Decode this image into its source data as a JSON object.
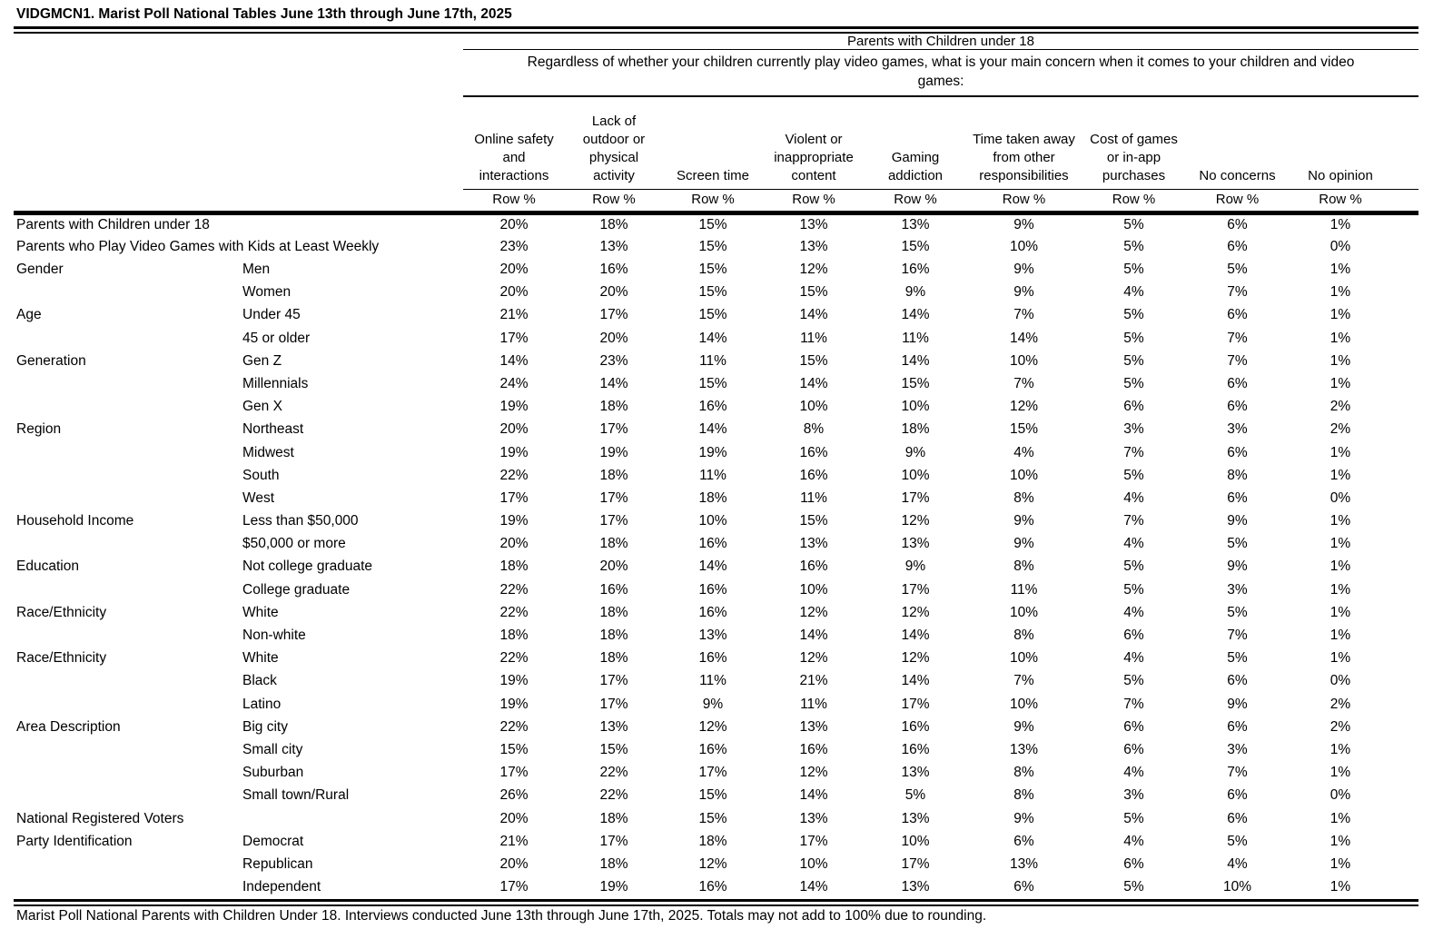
{
  "title": "VIDGMCN1. Marist Poll National Tables June 13th through June 17th, 2025",
  "table": {
    "group_header": "Parents with Children under 18",
    "question": "Regardless of whether your children currently play video games, what is your main concern when it comes to your children and video\ngames:",
    "measure_label": "Row %",
    "columns": [
      "Online safety\nand\ninteractions",
      "Lack of\noutdoor or\nphysical\nactivity",
      "Screen time",
      "Violent or\ninappropriate\ncontent",
      "Gaming\naddiction",
      "Time taken away\nfrom other\nresponsibilities",
      "Cost of games\nor in-app\npurchases",
      "No concerns",
      "No opinion"
    ],
    "rows": [
      {
        "category": "Parents with Children under 18",
        "subcategory": "",
        "values": [
          "20%",
          "18%",
          "15%",
          "13%",
          "13%",
          "9%",
          "5%",
          "6%",
          "1%"
        ]
      },
      {
        "category": "Parents who Play Video Games with Kids at Least Weekly",
        "subcategory": "",
        "values": [
          "23%",
          "13%",
          "15%",
          "13%",
          "15%",
          "10%",
          "5%",
          "6%",
          "0%"
        ]
      },
      {
        "category": "Gender",
        "subcategory": "Men",
        "values": [
          "20%",
          "16%",
          "15%",
          "12%",
          "16%",
          "9%",
          "5%",
          "5%",
          "1%"
        ]
      },
      {
        "category": "",
        "subcategory": "Women",
        "values": [
          "20%",
          "20%",
          "15%",
          "15%",
          "9%",
          "9%",
          "4%",
          "7%",
          "1%"
        ]
      },
      {
        "category": "Age",
        "subcategory": "Under 45",
        "values": [
          "21%",
          "17%",
          "15%",
          "14%",
          "14%",
          "7%",
          "5%",
          "6%",
          "1%"
        ]
      },
      {
        "category": "",
        "subcategory": "45 or older",
        "values": [
          "17%",
          "20%",
          "14%",
          "11%",
          "11%",
          "14%",
          "5%",
          "7%",
          "1%"
        ]
      },
      {
        "category": "Generation",
        "subcategory": "Gen Z",
        "values": [
          "14%",
          "23%",
          "11%",
          "15%",
          "14%",
          "10%",
          "5%",
          "7%",
          "1%"
        ]
      },
      {
        "category": "",
        "subcategory": "Millennials",
        "values": [
          "24%",
          "14%",
          "15%",
          "14%",
          "15%",
          "7%",
          "5%",
          "6%",
          "1%"
        ]
      },
      {
        "category": "",
        "subcategory": "Gen X",
        "values": [
          "19%",
          "18%",
          "16%",
          "10%",
          "10%",
          "12%",
          "6%",
          "6%",
          "2%"
        ]
      },
      {
        "category": "Region",
        "subcategory": "Northeast",
        "values": [
          "20%",
          "17%",
          "14%",
          "8%",
          "18%",
          "15%",
          "3%",
          "3%",
          "2%"
        ]
      },
      {
        "category": "",
        "subcategory": "Midwest",
        "values": [
          "19%",
          "19%",
          "19%",
          "16%",
          "9%",
          "4%",
          "7%",
          "6%",
          "1%"
        ]
      },
      {
        "category": "",
        "subcategory": "South",
        "values": [
          "22%",
          "18%",
          "11%",
          "16%",
          "10%",
          "10%",
          "5%",
          "8%",
          "1%"
        ]
      },
      {
        "category": "",
        "subcategory": "West",
        "values": [
          "17%",
          "17%",
          "18%",
          "11%",
          "17%",
          "8%",
          "4%",
          "6%",
          "0%"
        ]
      },
      {
        "category": "Household Income",
        "subcategory": "Less than $50,000",
        "values": [
          "19%",
          "17%",
          "10%",
          "15%",
          "12%",
          "9%",
          "7%",
          "9%",
          "1%"
        ]
      },
      {
        "category": "",
        "subcategory": "$50,000 or more",
        "values": [
          "20%",
          "18%",
          "16%",
          "13%",
          "13%",
          "9%",
          "4%",
          "5%",
          "1%"
        ]
      },
      {
        "category": "Education",
        "subcategory": "Not college graduate",
        "values": [
          "18%",
          "20%",
          "14%",
          "16%",
          "9%",
          "8%",
          "5%",
          "9%",
          "1%"
        ]
      },
      {
        "category": "",
        "subcategory": "College graduate",
        "values": [
          "22%",
          "16%",
          "16%",
          "10%",
          "17%",
          "11%",
          "5%",
          "3%",
          "1%"
        ]
      },
      {
        "category": "Race/Ethnicity",
        "subcategory": "White",
        "values": [
          "22%",
          "18%",
          "16%",
          "12%",
          "12%",
          "10%",
          "4%",
          "5%",
          "1%"
        ]
      },
      {
        "category": "",
        "subcategory": "Non-white",
        "values": [
          "18%",
          "18%",
          "13%",
          "14%",
          "14%",
          "8%",
          "6%",
          "7%",
          "1%"
        ]
      },
      {
        "category": "Race/Ethnicity",
        "subcategory": "White",
        "values": [
          "22%",
          "18%",
          "16%",
          "12%",
          "12%",
          "10%",
          "4%",
          "5%",
          "1%"
        ]
      },
      {
        "category": "",
        "subcategory": "Black",
        "values": [
          "19%",
          "17%",
          "11%",
          "21%",
          "14%",
          "7%",
          "5%",
          "6%",
          "0%"
        ]
      },
      {
        "category": "",
        "subcategory": "Latino",
        "values": [
          "19%",
          "17%",
          "9%",
          "11%",
          "17%",
          "10%",
          "7%",
          "9%",
          "2%"
        ]
      },
      {
        "category": "Area Description",
        "subcategory": "Big city",
        "values": [
          "22%",
          "13%",
          "12%",
          "13%",
          "16%",
          "9%",
          "6%",
          "6%",
          "2%"
        ]
      },
      {
        "category": "",
        "subcategory": "Small city",
        "values": [
          "15%",
          "15%",
          "16%",
          "16%",
          "16%",
          "13%",
          "6%",
          "3%",
          "1%"
        ]
      },
      {
        "category": "",
        "subcategory": "Suburban",
        "values": [
          "17%",
          "22%",
          "17%",
          "12%",
          "13%",
          "8%",
          "4%",
          "7%",
          "1%"
        ]
      },
      {
        "category": "",
        "subcategory": "Small town/Rural",
        "values": [
          "26%",
          "22%",
          "15%",
          "14%",
          "5%",
          "8%",
          "3%",
          "6%",
          "0%"
        ]
      },
      {
        "category": "National Registered Voters",
        "subcategory": "",
        "values": [
          "20%",
          "18%",
          "15%",
          "13%",
          "13%",
          "9%",
          "5%",
          "6%",
          "1%"
        ]
      },
      {
        "category": "Party Identification",
        "subcategory": "Democrat",
        "values": [
          "21%",
          "17%",
          "18%",
          "17%",
          "10%",
          "6%",
          "4%",
          "5%",
          "1%"
        ]
      },
      {
        "category": "",
        "subcategory": "Republican",
        "values": [
          "20%",
          "18%",
          "12%",
          "10%",
          "17%",
          "13%",
          "6%",
          "4%",
          "1%"
        ]
      },
      {
        "category": "",
        "subcategory": "Independent",
        "values": [
          "17%",
          "19%",
          "16%",
          "14%",
          "13%",
          "6%",
          "5%",
          "10%",
          "1%"
        ]
      }
    ]
  },
  "footer": "Marist Poll National Parents with Children Under 18. Interviews conducted June 13th through June 17th, 2025. Totals may not add to 100% due to rounding."
}
